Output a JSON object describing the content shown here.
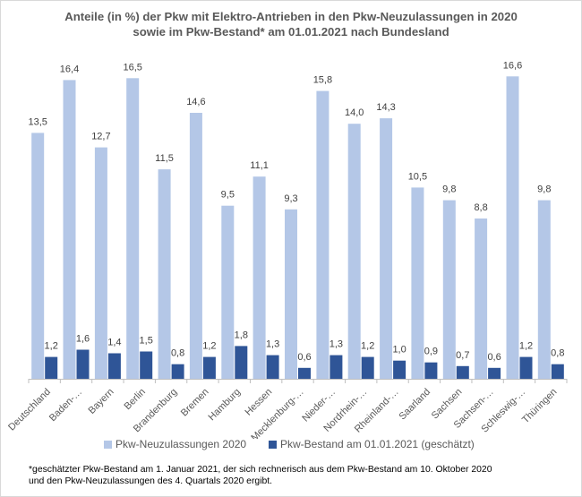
{
  "chart_data": {
    "type": "bar",
    "title_line1": "Anteile (in %)  der Pkw mit Elektro-Antrieben  in den Pkw-Neuzulassungen  in 2020",
    "title_line2": "sowie im Pkw-Bestand*  am 01.01.2021  nach Bundesland",
    "categories": [
      "Deutschland",
      "Baden-…",
      "Bayern",
      "Berlin",
      "Brandenburg",
      "Bremen",
      "Hamburg",
      "Hessen",
      "Mecklenburg-…",
      "Nieder-…",
      "Nordrhein-…",
      "Rheinland-…",
      "Saarland",
      "Sachsen",
      "Sachsen-…",
      "Schleswig-…",
      "Thüringen"
    ],
    "series": [
      {
        "name": "Pkw-Neuzulassungen 2020",
        "color": "#b4c7e7",
        "values": [
          13.5,
          16.4,
          12.7,
          16.5,
          11.5,
          14.6,
          9.5,
          11.1,
          9.3,
          15.8,
          14.0,
          14.3,
          10.5,
          9.8,
          8.8,
          16.6,
          9.8
        ],
        "labels": [
          "13,5",
          "16,4",
          "12,7",
          "16,5",
          "11,5",
          "14,6",
          "9,5",
          "11,1",
          "9,3",
          "15,8",
          "14,0",
          "14,3",
          "10,5",
          "9,8",
          "8,8",
          "16,6",
          "9,8"
        ]
      },
      {
        "name": "Pkw-Bestand am 01.01.2021 (geschätzt)",
        "color": "#2f5597",
        "values": [
          1.2,
          1.6,
          1.4,
          1.5,
          0.8,
          1.2,
          1.8,
          1.3,
          0.6,
          1.3,
          1.2,
          1.0,
          0.9,
          0.7,
          0.6,
          1.2,
          0.8
        ],
        "labels": [
          "1,2",
          "1,6",
          "1,4",
          "1,5",
          "0,8",
          "1,2",
          "1,8",
          "1,3",
          "0,6",
          "1,3",
          "1,2",
          "1,0",
          "0,9",
          "0,7",
          "0,6",
          "1,2",
          "0,8"
        ]
      }
    ],
    "ylim": [
      0,
      17.5
    ],
    "grid": false,
    "legend": "bottom",
    "xlabel": "",
    "ylabel": ""
  },
  "footnote_line1": "*geschätzter Pkw-Bestand am 1. Januar 2021, der sich rechnerisch aus dem Pkw-Bestand am 10. Oktober 2020",
  "footnote_line2": "und den Pkw-Neuzulassungen des 4. Quartals 2020 ergibt."
}
